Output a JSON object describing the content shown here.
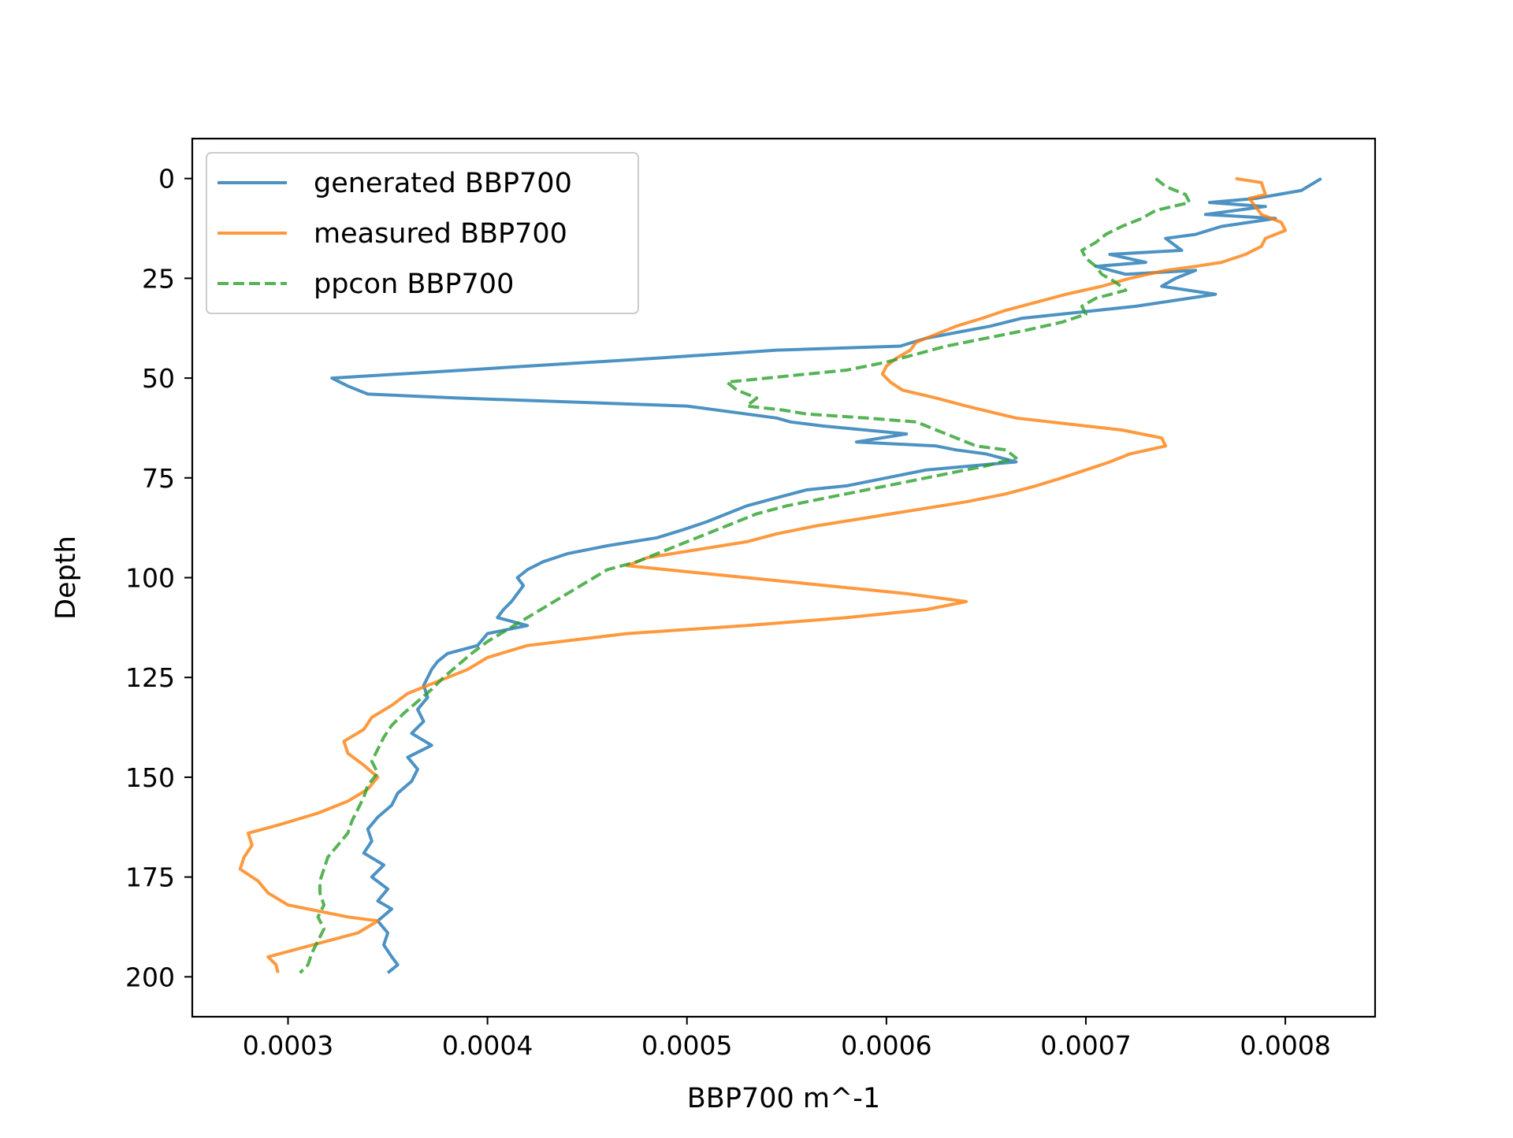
{
  "chart_data": {
    "type": "line",
    "title": "",
    "xlabel": "BBP700 m^-1",
    "ylabel": "Depth",
    "xlim": [
      0.000252,
      0.000845
    ],
    "ylim": [
      210,
      -10
    ],
    "y_inverted": true,
    "xticks": [
      "0.0003",
      "0.0004",
      "0.0005",
      "0.0006",
      "0.0007",
      "0.0008"
    ],
    "xtick_values": [
      0.0003,
      0.0004,
      0.0005,
      0.0006,
      0.0007,
      0.0008
    ],
    "yticks": [
      "0",
      "25",
      "50",
      "75",
      "100",
      "125",
      "150",
      "175",
      "200"
    ],
    "ytick_values": [
      0,
      25,
      50,
      75,
      100,
      125,
      150,
      175,
      200
    ],
    "grid": false,
    "legend_position": "upper-left",
    "series": [
      {
        "name": "generated BBP700",
        "color": "#1f77b4",
        "style": "solid",
        "points": [
          [
            0.000818,
            0
          ],
          [
            0.000808,
            3
          ],
          [
            0.000785,
            5
          ],
          [
            0.000762,
            6
          ],
          [
            0.00079,
            7
          ],
          [
            0.00076,
            9
          ],
          [
            0.000795,
            10
          ],
          [
            0.000768,
            12
          ],
          [
            0.000755,
            14
          ],
          [
            0.00074,
            15
          ],
          [
            0.000748,
            18
          ],
          [
            0.000712,
            19
          ],
          [
            0.00073,
            21
          ],
          [
            0.000705,
            22
          ],
          [
            0.00072,
            24
          ],
          [
            0.000755,
            23
          ],
          [
            0.000745,
            25
          ],
          [
            0.000738,
            27
          ],
          [
            0.000765,
            29
          ],
          [
            0.000725,
            32
          ],
          [
            0.000668,
            35
          ],
          [
            0.000652,
            37
          ],
          [
            0.00062,
            40
          ],
          [
            0.000607,
            42
          ],
          [
            0.000545,
            43
          ],
          [
            0.000485,
            45
          ],
          [
            0.00042,
            47
          ],
          [
            0.000388,
            48
          ],
          [
            0.000322,
            50
          ],
          [
            0.00033,
            52
          ],
          [
            0.00034,
            54
          ],
          [
            0.000385,
            55
          ],
          [
            0.0005,
            57
          ],
          [
            0.000545,
            60
          ],
          [
            0.000552,
            61
          ],
          [
            0.000568,
            62
          ],
          [
            0.00061,
            64
          ],
          [
            0.000585,
            66
          ],
          [
            0.000625,
            67
          ],
          [
            0.000635,
            68
          ],
          [
            0.00065,
            69
          ],
          [
            0.000665,
            71
          ],
          [
            0.00062,
            73
          ],
          [
            0.0006,
            75
          ],
          [
            0.00058,
            77
          ],
          [
            0.00056,
            78
          ],
          [
            0.000545,
            80
          ],
          [
            0.00053,
            82
          ],
          [
            0.00052,
            84
          ],
          [
            0.00051,
            86
          ],
          [
            0.000498,
            88
          ],
          [
            0.000485,
            90
          ],
          [
            0.00046,
            92
          ],
          [
            0.00044,
            94
          ],
          [
            0.000428,
            96
          ],
          [
            0.00042,
            98
          ],
          [
            0.000415,
            100
          ],
          [
            0.000418,
            102
          ],
          [
            0.000415,
            104
          ],
          [
            0.000412,
            106
          ],
          [
            0.000408,
            108
          ],
          [
            0.000405,
            110
          ],
          [
            0.00042,
            112
          ],
          [
            0.0004,
            114
          ],
          [
            0.000395,
            117
          ],
          [
            0.00038,
            119
          ],
          [
            0.000375,
            121
          ],
          [
            0.000372,
            123
          ],
          [
            0.00037,
            125
          ],
          [
            0.000368,
            127
          ],
          [
            0.00037,
            130
          ],
          [
            0.000365,
            133
          ],
          [
            0.000368,
            136
          ],
          [
            0.000362,
            139
          ],
          [
            0.000372,
            142
          ],
          [
            0.00036,
            145
          ],
          [
            0.000365,
            148
          ],
          [
            0.000362,
            151
          ],
          [
            0.000355,
            154
          ],
          [
            0.000352,
            157
          ],
          [
            0.000345,
            160
          ],
          [
            0.00034,
            163
          ],
          [
            0.000342,
            166
          ],
          [
            0.000338,
            169
          ],
          [
            0.000348,
            172
          ],
          [
            0.000342,
            175
          ],
          [
            0.00035,
            178
          ],
          [
            0.000345,
            181
          ],
          [
            0.000352,
            183
          ],
          [
            0.000345,
            186
          ],
          [
            0.00035,
            189
          ],
          [
            0.000348,
            192
          ],
          [
            0.000352,
            195
          ],
          [
            0.000355,
            197
          ],
          [
            0.00035,
            199
          ]
        ]
      },
      {
        "name": "measured BBP700",
        "color": "#ff7f0e",
        "style": "solid",
        "points": [
          [
            0.000775,
            0
          ],
          [
            0.000788,
            1
          ],
          [
            0.00079,
            4
          ],
          [
            0.000782,
            5
          ],
          [
            0.000785,
            7
          ],
          [
            0.000788,
            9
          ],
          [
            0.000798,
            11
          ],
          [
            0.0008,
            13
          ],
          [
            0.00079,
            15
          ],
          [
            0.000788,
            17
          ],
          [
            0.00078,
            19
          ],
          [
            0.000768,
            21
          ],
          [
            0.000755,
            22
          ],
          [
            0.00074,
            23
          ],
          [
            0.000722,
            25
          ],
          [
            0.000708,
            27
          ],
          [
            0.00069,
            29
          ],
          [
            0.000675,
            31
          ],
          [
            0.00066,
            33
          ],
          [
            0.000648,
            35
          ],
          [
            0.000635,
            37
          ],
          [
            0.000625,
            39
          ],
          [
            0.000615,
            41
          ],
          [
            0.000612,
            43
          ],
          [
            0.000605,
            45
          ],
          [
            0.0006,
            47
          ],
          [
            0.000598,
            49
          ],
          [
            0.000602,
            51
          ],
          [
            0.000608,
            53
          ],
          [
            0.000625,
            55
          ],
          [
            0.00064,
            57
          ],
          [
            0.000665,
            60
          ],
          [
            0.0007,
            62
          ],
          [
            0.000718,
            63
          ],
          [
            0.000738,
            65
          ],
          [
            0.00074,
            67
          ],
          [
            0.000722,
            69
          ],
          [
            0.000712,
            71
          ],
          [
            0.0007,
            73
          ],
          [
            0.000688,
            75
          ],
          [
            0.000675,
            77
          ],
          [
            0.00066,
            79
          ],
          [
            0.00064,
            81
          ],
          [
            0.000615,
            83
          ],
          [
            0.00059,
            85
          ],
          [
            0.000565,
            87
          ],
          [
            0.000545,
            89
          ],
          [
            0.00053,
            91
          ],
          [
            0.000505,
            93
          ],
          [
            0.00048,
            95
          ],
          [
            0.00047,
            97
          ],
          [
            0.00049,
            98
          ],
          [
            0.00053,
            100
          ],
          [
            0.00057,
            102
          ],
          [
            0.00061,
            104
          ],
          [
            0.00064,
            106
          ],
          [
            0.00062,
            108
          ],
          [
            0.00058,
            110
          ],
          [
            0.00053,
            112
          ],
          [
            0.00047,
            114
          ],
          [
            0.00042,
            117
          ],
          [
            0.0004,
            120
          ],
          [
            0.00039,
            123
          ],
          [
            0.000375,
            126
          ],
          [
            0.00036,
            129
          ],
          [
            0.000352,
            132
          ],
          [
            0.000342,
            135
          ],
          [
            0.000338,
            138
          ],
          [
            0.000328,
            141
          ],
          [
            0.00033,
            144
          ],
          [
            0.000338,
            147
          ],
          [
            0.000345,
            150
          ],
          [
            0.00034,
            153
          ],
          [
            0.00033,
            156
          ],
          [
            0.000315,
            159
          ],
          [
            0.000295,
            162
          ],
          [
            0.00028,
            164
          ],
          [
            0.000282,
            167
          ],
          [
            0.000278,
            170
          ],
          [
            0.000276,
            173
          ],
          [
            0.000285,
            176
          ],
          [
            0.00029,
            179
          ],
          [
            0.0003,
            182
          ],
          [
            0.00033,
            185
          ],
          [
            0.000345,
            186
          ],
          [
            0.000335,
            189
          ],
          [
            0.00032,
            191
          ],
          [
            0.000305,
            193
          ],
          [
            0.00029,
            195
          ],
          [
            0.000294,
            197
          ],
          [
            0.000295,
            199
          ]
        ]
      },
      {
        "name": "ppcon BBP700",
        "color": "#2ca02c",
        "style": "dashed",
        "points": [
          [
            0.000735,
            0
          ],
          [
            0.00074,
            2
          ],
          [
            0.00075,
            4
          ],
          [
            0.000752,
            6
          ],
          [
            0.000735,
            8
          ],
          [
            0.000728,
            10
          ],
          [
            0.000718,
            12
          ],
          [
            0.00071,
            14
          ],
          [
            0.000705,
            16
          ],
          [
            0.000698,
            18
          ],
          [
            0.0007,
            20
          ],
          [
            0.000705,
            22
          ],
          [
            0.000708,
            24
          ],
          [
            0.000715,
            26
          ],
          [
            0.00072,
            28
          ],
          [
            0.000705,
            30
          ],
          [
            0.000698,
            32
          ],
          [
            0.0007,
            34
          ],
          [
            0.000688,
            36
          ],
          [
            0.00067,
            38
          ],
          [
            0.00065,
            40
          ],
          [
            0.00063,
            42
          ],
          [
            0.000615,
            44
          ],
          [
            0.0006,
            46
          ],
          [
            0.00058,
            48
          ],
          [
            0.00056,
            49
          ],
          [
            0.00052,
            51
          ],
          [
            0.000525,
            53
          ],
          [
            0.000535,
            55
          ],
          [
            0.00053,
            57
          ],
          [
            0.000548,
            58
          ],
          [
            0.00056,
            59
          ],
          [
            0.00059,
            60
          ],
          [
            0.000615,
            61
          ],
          [
            0.000625,
            63
          ],
          [
            0.000635,
            65
          ],
          [
            0.000645,
            67
          ],
          [
            0.00066,
            68
          ],
          [
            0.000665,
            70
          ],
          [
            0.00065,
            72
          ],
          [
            0.00063,
            74
          ],
          [
            0.00061,
            76
          ],
          [
            0.00059,
            78
          ],
          [
            0.00057,
            80
          ],
          [
            0.00055,
            82
          ],
          [
            0.000535,
            84
          ],
          [
            0.00052,
            87
          ],
          [
            0.000505,
            90
          ],
          [
            0.00049,
            93
          ],
          [
            0.000475,
            96
          ],
          [
            0.00046,
            98
          ],
          [
            0.00045,
            101
          ],
          [
            0.00044,
            104
          ],
          [
            0.00043,
            107
          ],
          [
            0.00042,
            110
          ],
          [
            0.00041,
            113
          ],
          [
            0.0004,
            116
          ],
          [
            0.000392,
            119
          ],
          [
            0.000385,
            122
          ],
          [
            0.000378,
            125
          ],
          [
            0.000372,
            128
          ],
          [
            0.000365,
            131
          ],
          [
            0.000358,
            134
          ],
          [
            0.000352,
            137
          ],
          [
            0.000348,
            140
          ],
          [
            0.000345,
            143
          ],
          [
            0.000342,
            146
          ],
          [
            0.000345,
            149
          ],
          [
            0.00034,
            152
          ],
          [
            0.000338,
            155
          ],
          [
            0.000335,
            158
          ],
          [
            0.000332,
            161
          ],
          [
            0.00033,
            164
          ],
          [
            0.000325,
            167
          ],
          [
            0.00032,
            170
          ],
          [
            0.000318,
            173
          ],
          [
            0.000316,
            176
          ],
          [
            0.000316,
            179
          ],
          [
            0.000318,
            182
          ],
          [
            0.000315,
            185
          ],
          [
            0.000318,
            188
          ],
          [
            0.000315,
            191
          ],
          [
            0.000312,
            194
          ],
          [
            0.00031,
            197
          ],
          [
            0.000306,
            199
          ]
        ]
      }
    ]
  }
}
